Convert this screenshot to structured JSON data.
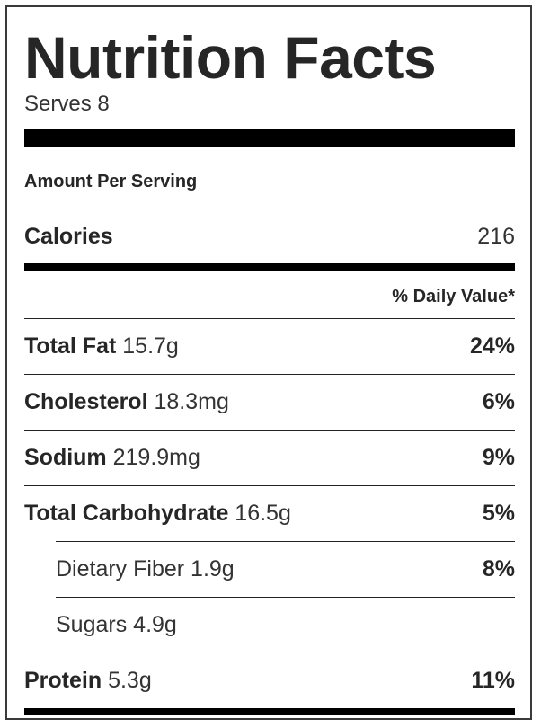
{
  "label": {
    "title": "Nutrition Facts",
    "serves": "Serves 8",
    "amount_per_serving": "Amount Per Serving",
    "calories": {
      "label": "Calories",
      "value": "216"
    },
    "daily_value_header": "% Daily Value*",
    "nutrients": [
      {
        "name": "Total Fat",
        "amount": "15.7g",
        "dv": "24%"
      },
      {
        "name": "Cholesterol",
        "amount": "18.3mg",
        "dv": "6%"
      },
      {
        "name": "Sodium",
        "amount": "219.9mg",
        "dv": "9%"
      },
      {
        "name": "Total Carbohydrate",
        "amount": "16.5g",
        "dv": "5%"
      },
      {
        "name": "Dietary Fiber",
        "amount": "1.9g",
        "dv": "8%"
      },
      {
        "name": "Sugars",
        "amount": "4.9g",
        "dv": ""
      },
      {
        "name": "Protein",
        "amount": "5.3g",
        "dv": "11%"
      }
    ]
  }
}
